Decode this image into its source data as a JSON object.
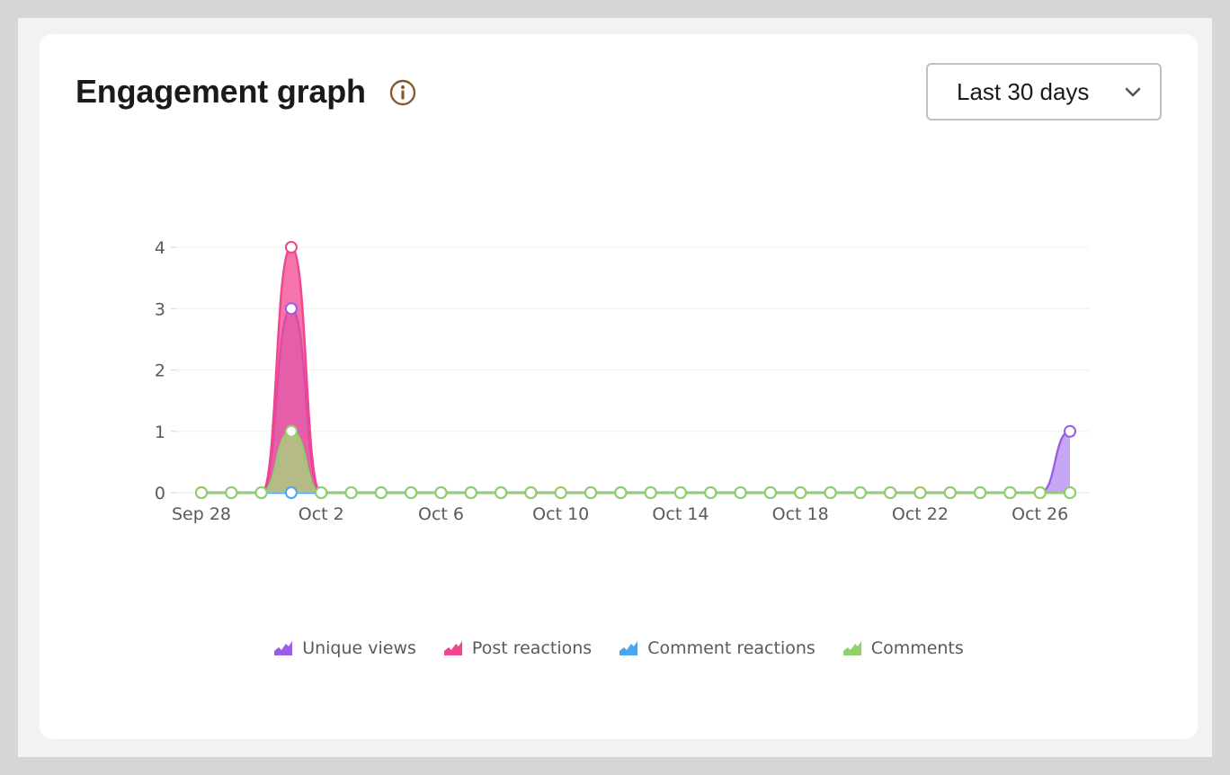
{
  "header": {
    "title": "Engagement graph",
    "info_icon": "info-circle-icon",
    "range_label": "Last 30 days",
    "range_icon": "chevron-down-icon"
  },
  "chart_data": {
    "type": "area",
    "x": [
      "Sep 28",
      "Sep 29",
      "Sep 30",
      "Oct 1",
      "Oct 2",
      "Oct 3",
      "Oct 4",
      "Oct 5",
      "Oct 6",
      "Oct 7",
      "Oct 8",
      "Oct 9",
      "Oct 10",
      "Oct 11",
      "Oct 12",
      "Oct 13",
      "Oct 14",
      "Oct 15",
      "Oct 16",
      "Oct 17",
      "Oct 18",
      "Oct 19",
      "Oct 20",
      "Oct 21",
      "Oct 22",
      "Oct 23",
      "Oct 24",
      "Oct 25",
      "Oct 26",
      "Oct 27"
    ],
    "x_tick_labels": [
      "Sep 28",
      "Oct 2",
      "Oct 6",
      "Oct 10",
      "Oct 14",
      "Oct 18",
      "Oct 22",
      "Oct 26"
    ],
    "y_ticks": [
      0,
      1,
      2,
      3,
      4
    ],
    "ylim": [
      0,
      4
    ],
    "grid": true,
    "legend_position": "bottom",
    "series": [
      {
        "name": "Unique views",
        "color": "#9b5de5",
        "fill": "#b38af0",
        "values": [
          0,
          0,
          0,
          3,
          0,
          0,
          0,
          0,
          0,
          0,
          0,
          0,
          0,
          0,
          0,
          0,
          0,
          0,
          0,
          0,
          0,
          0,
          0,
          0,
          0,
          0,
          0,
          0,
          0,
          1
        ]
      },
      {
        "name": "Post reactions",
        "color": "#f0458f",
        "fill": "#f0458f",
        "values": [
          0,
          0,
          0,
          4,
          0,
          0,
          0,
          0,
          0,
          0,
          0,
          0,
          0,
          0,
          0,
          0,
          0,
          0,
          0,
          0,
          0,
          0,
          0,
          0,
          0,
          0,
          0,
          0,
          0,
          0
        ]
      },
      {
        "name": "Comment reactions",
        "color": "#4ba6ee",
        "fill": "#7cc0f3",
        "values": [
          0,
          0,
          0,
          0,
          0,
          0,
          0,
          0,
          0,
          0,
          0,
          0,
          0,
          0,
          0,
          0,
          0,
          0,
          0,
          0,
          0,
          0,
          0,
          0,
          0,
          0,
          0,
          0,
          0,
          0
        ]
      },
      {
        "name": "Comments",
        "color": "#8fd16a",
        "fill": "#a6d97c",
        "values": [
          0,
          0,
          0,
          1,
          0,
          0,
          0,
          0,
          0,
          0,
          0,
          0,
          0,
          0,
          0,
          0,
          0,
          0,
          0,
          0,
          0,
          0,
          0,
          0,
          0,
          0,
          0,
          0,
          0,
          0
        ]
      }
    ]
  }
}
